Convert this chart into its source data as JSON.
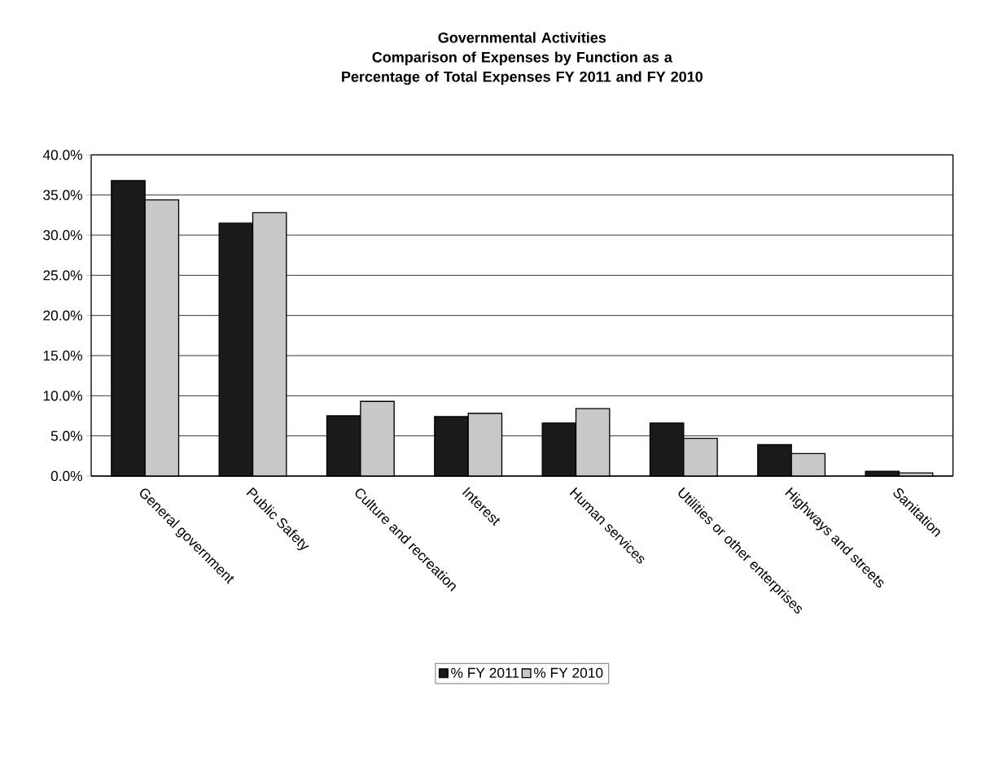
{
  "chart_data": {
    "type": "bar",
    "title": "Governmental Activities",
    "subtitle": "Comparison of Expenses by Function as a Percentage of Total Expenses FY 2011 and FY 2010",
    "categories": [
      "General government",
      "Public Safety",
      "Culture and recreation",
      "Interest",
      "Human services",
      "Utilities or other enterprises",
      "Highways and streets",
      "Sanitation"
    ],
    "series": [
      {
        "name": "% FY 2011",
        "color": "#1a1a1a",
        "values": [
          36.8,
          31.5,
          7.5,
          7.4,
          6.6,
          6.6,
          3.9,
          0.6
        ]
      },
      {
        "name": "% FY 2010",
        "color": "#c8c8c8",
        "values": [
          34.4,
          32.8,
          9.3,
          7.8,
          8.4,
          4.7,
          2.8,
          0.4
        ]
      }
    ],
    "ylim": [
      0,
      40
    ],
    "yticks": [
      {
        "value": 0,
        "label": "0.0%"
      },
      {
        "value": 5,
        "label": "5.0%"
      },
      {
        "value": 10,
        "label": "10.0%"
      },
      {
        "value": 15,
        "label": "15.0%"
      },
      {
        "value": 20,
        "label": "20.0%"
      },
      {
        "value": 25,
        "label": "25.0%"
      },
      {
        "value": 30,
        "label": "30.0%"
      },
      {
        "value": 35,
        "label": "35.0%"
      },
      {
        "value": 40,
        "label": "40.0%"
      }
    ],
    "grid": "y",
    "legend": "bottom"
  }
}
